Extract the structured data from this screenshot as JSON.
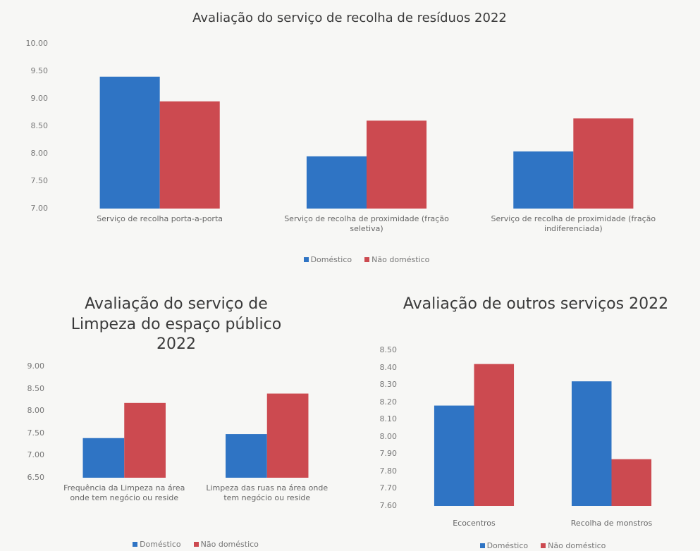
{
  "chart_data": [
    {
      "type": "bar",
      "title": "Avaliação do serviço de recolha de resíduos 2022",
      "categories": [
        "Serviço de recolha porta-a-porta",
        "Serviço de recolha de proximidade (fração seletiva)",
        "Serviço de recolha de proximidade (fração indiferenciada)"
      ],
      "series": [
        {
          "name": "Doméstico",
          "color": "#2f74c4",
          "values": [
            9.4,
            7.95,
            8.04
          ]
        },
        {
          "name": "Não doméstico",
          "color": "#cc4a50",
          "values": [
            8.95,
            8.6,
            8.64
          ]
        }
      ],
      "ylim": [
        7,
        10
      ],
      "yticks": [
        {
          "value": 7,
          "label": "7.00"
        },
        {
          "value": 7.5,
          "label": "7.50"
        },
        {
          "value": 8,
          "label": "8.00"
        },
        {
          "value": 8.5,
          "label": "8.50"
        },
        {
          "value": 9,
          "label": "9.00"
        },
        {
          "value": 9.5,
          "label": "9.50"
        },
        {
          "value": 10,
          "label": "10.00"
        }
      ],
      "legend": "bottom"
    },
    {
      "type": "bar",
      "title": "Avaliação do serviço de Limpeza do espaço público 2022",
      "categories": [
        "Frequência da Limpeza na área onde tem negócio ou reside",
        "Limpeza das ruas na área onde tem negócio ou reside"
      ],
      "series": [
        {
          "name": "Doméstico",
          "color": "#2f74c4",
          "values": [
            7.39,
            7.48
          ]
        },
        {
          "name": "Não doméstico",
          "color": "#cc4a50",
          "values": [
            8.18,
            8.39
          ]
        }
      ],
      "ylim": [
        6.5,
        9
      ],
      "yticks": [
        {
          "value": 6.5,
          "label": "6.50"
        },
        {
          "value": 7,
          "label": "7.00"
        },
        {
          "value": 7.5,
          "label": "7.50"
        },
        {
          "value": 8,
          "label": "8.00"
        },
        {
          "value": 8.5,
          "label": "8.50"
        },
        {
          "value": 9,
          "label": "9.00"
        }
      ],
      "legend": "bottom"
    },
    {
      "type": "bar",
      "title": "Avaliação de outros serviços 2022",
      "categories": [
        "Ecocentros",
        "Recolha de monstros"
      ],
      "series": [
        {
          "name": "Doméstico",
          "color": "#2f74c4",
          "values": [
            8.18,
            8.32
          ]
        },
        {
          "name": "Não doméstico",
          "color": "#cc4a50",
          "values": [
            8.42,
            7.87
          ]
        }
      ],
      "ylim": [
        7.6,
        8.5
      ],
      "yticks": [
        {
          "value": 7.6,
          "label": "7.60"
        },
        {
          "value": 7.7,
          "label": "7.70"
        },
        {
          "value": 7.8,
          "label": "7.80"
        },
        {
          "value": 7.9,
          "label": "7.90"
        },
        {
          "value": 8,
          "label": "8.00"
        },
        {
          "value": 8.1,
          "label": "8.10"
        },
        {
          "value": 8.2,
          "label": "8.20"
        },
        {
          "value": 8.3,
          "label": "8.30"
        },
        {
          "value": 8.4,
          "label": "8.40"
        },
        {
          "value": 8.5,
          "label": "8.50"
        }
      ],
      "legend": "bottom"
    }
  ]
}
